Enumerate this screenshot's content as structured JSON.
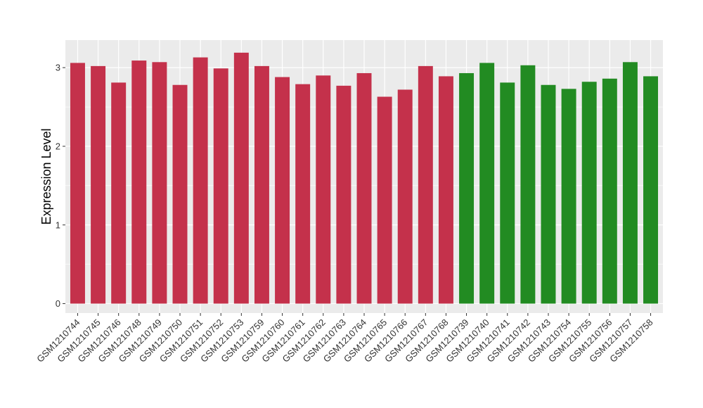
{
  "chart_data": {
    "type": "bar",
    "title": "",
    "xlabel": "",
    "ylabel": "Expression Level",
    "ylim": [
      -0.12,
      3.35
    ],
    "yticks": [
      0,
      1,
      2,
      3
    ],
    "grid": true,
    "legend": "none",
    "categories": [
      "GSM1210744",
      "GSM1210745",
      "GSM1210746",
      "GSM1210748",
      "GSM1210749",
      "GSM1210750",
      "GSM1210751",
      "GSM1210752",
      "GSM1210753",
      "GSM1210759",
      "GSM1210760",
      "GSM1210761",
      "GSM1210762",
      "GSM1210763",
      "GSM1210764",
      "GSM1210765",
      "GSM1210766",
      "GSM1210767",
      "GSM1210768",
      "GSM1210739",
      "GSM1210740",
      "GSM1210741",
      "GSM1210742",
      "GSM1210743",
      "GSM1210754",
      "GSM1210755",
      "GSM1210756",
      "GSM1210757",
      "GSM1210758"
    ],
    "values": [
      3.06,
      3.02,
      2.81,
      3.09,
      3.07,
      2.78,
      3.13,
      2.99,
      3.19,
      3.02,
      2.88,
      2.79,
      2.9,
      2.77,
      2.93,
      2.63,
      2.72,
      3.02,
      2.89,
      2.93,
      3.06,
      2.81,
      3.03,
      2.78,
      2.73,
      2.82,
      2.86,
      3.07,
      2.89
    ],
    "bar_colors": [
      "#C4314B",
      "#C4314B",
      "#C4314B",
      "#C4314B",
      "#C4314B",
      "#C4314B",
      "#C4314B",
      "#C4314B",
      "#C4314B",
      "#C4314B",
      "#C4314B",
      "#C4314B",
      "#C4314B",
      "#C4314B",
      "#C4314B",
      "#C4314B",
      "#C4314B",
      "#C4314B",
      "#C4314B",
      "#228B22",
      "#228B22",
      "#228B22",
      "#228B22",
      "#228B22",
      "#228B22",
      "#228B22",
      "#228B22",
      "#228B22",
      "#228B22"
    ],
    "panel_background": "#EBEBEB",
    "gridline_color": "#FFFFFF"
  }
}
